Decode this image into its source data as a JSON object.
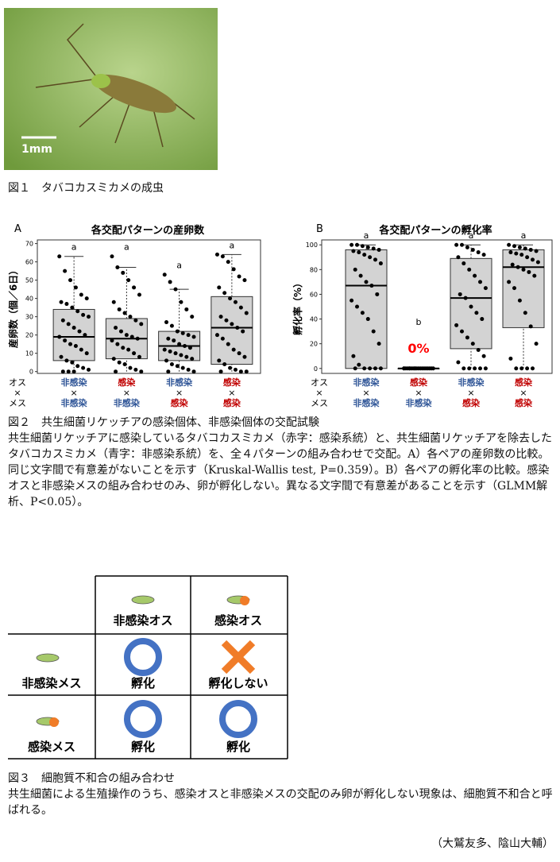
{
  "figure1": {
    "scale_bar": "1mm",
    "caption": "図１　タバコカスミカメの成虫"
  },
  "chart_data": [
    {
      "type": "box",
      "panel": "A",
      "title": "各交配パターンの産卵数",
      "ylabel": "産卵数（個／6日）",
      "ylim": [
        -1,
        72
      ],
      "yticks": [
        0,
        10,
        20,
        30,
        40,
        50,
        60,
        70
      ],
      "male_label": "オス",
      "female_label": "メス",
      "cross": "×",
      "male": [
        "非感染",
        "感染",
        "非感染",
        "感染"
      ],
      "female": [
        "非感染",
        "非感染",
        "感染",
        "感染"
      ],
      "male_colors": [
        "#2f5597",
        "#c00000",
        "#2f5597",
        "#c00000"
      ],
      "female_colors": [
        "#2f5597",
        "#2f5597",
        "#c00000",
        "#c00000"
      ],
      "letters": [
        "a",
        "a",
        "a",
        "a"
      ],
      "boxes": [
        {
          "min": 0,
          "q1": 6,
          "median": 19,
          "q3": 34,
          "max": 63
        },
        {
          "min": 0,
          "q1": 7,
          "median": 18,
          "q3": 29,
          "max": 57
        },
        {
          "min": 0,
          "q1": 6,
          "median": 14,
          "q3": 22,
          "max": 45
        },
        {
          "min": 0,
          "q1": 4,
          "median": 24,
          "q3": 41,
          "max": 64
        }
      ],
      "points": [
        [
          63,
          55,
          50,
          46,
          42,
          40,
          38,
          37,
          35,
          33,
          31,
          30,
          28,
          26,
          24,
          22,
          20,
          19,
          17,
          15,
          14,
          12,
          10,
          8,
          6,
          5,
          3,
          2,
          1,
          0,
          0,
          0
        ],
        [
          63,
          57,
          54,
          50,
          46,
          42,
          38,
          34,
          32,
          30,
          28,
          26,
          24,
          22,
          20,
          19,
          18,
          17,
          15,
          13,
          12,
          10,
          8,
          7,
          5,
          4,
          2,
          1,
          0,
          0
        ],
        [
          53,
          49,
          45,
          38,
          34,
          30,
          27,
          25,
          22,
          21,
          20,
          19,
          18,
          17,
          15,
          14,
          13,
          12,
          11,
          10,
          9,
          8,
          7,
          6,
          4,
          3,
          2,
          1,
          0,
          0
        ],
        [
          64,
          63,
          60,
          56,
          52,
          50,
          46,
          43,
          40,
          38,
          35,
          32,
          30,
          28,
          26,
          24,
          22,
          20,
          18,
          15,
          12,
          10,
          8,
          6,
          4,
          2,
          1,
          0,
          0,
          0
        ]
      ]
    },
    {
      "type": "box",
      "panel": "B",
      "title": "各交配パターンの孵化率",
      "ylabel": "孵化率（%）",
      "ylim": [
        -4,
        104
      ],
      "yticks": [
        0,
        20,
        40,
        60,
        80,
        100
      ],
      "male_label": "オス",
      "female_label": "メス",
      "cross": "×",
      "male": [
        "非感染",
        "感染",
        "非感染",
        "感染"
      ],
      "female": [
        "非感染",
        "非感染",
        "感染",
        "感染"
      ],
      "male_colors": [
        "#2f5597",
        "#c00000",
        "#2f5597",
        "#c00000"
      ],
      "female_colors": [
        "#2f5597",
        "#2f5597",
        "#c00000",
        "#c00000"
      ],
      "letters": [
        "a",
        "b",
        "a",
        "a"
      ],
      "annotation": "0%",
      "boxes": [
        {
          "min": 0,
          "q1": 0,
          "median": 67,
          "q3": 96,
          "max": 100
        },
        {
          "min": 0,
          "q1": 0,
          "median": 0,
          "q3": 0,
          "max": 0
        },
        {
          "min": 0,
          "q1": 16,
          "median": 57,
          "q3": 89,
          "max": 100
        },
        {
          "min": 0,
          "q1": 33,
          "median": 82,
          "q3": 96,
          "max": 100
        }
      ],
      "points": [
        [
          100,
          100,
          99,
          98,
          97,
          96,
          95,
          94,
          92,
          90,
          88,
          85,
          80,
          75,
          70,
          67,
          60,
          55,
          50,
          45,
          40,
          30,
          20,
          10,
          3,
          0,
          0,
          0,
          0,
          0
        ],
        [
          0,
          0,
          0,
          0,
          0,
          0,
          0,
          0,
          0,
          0,
          0,
          0,
          0,
          0,
          0,
          0,
          0,
          0,
          0,
          0
        ],
        [
          100,
          100,
          98,
          96,
          94,
          92,
          90,
          85,
          80,
          75,
          70,
          65,
          60,
          57,
          50,
          45,
          40,
          35,
          30,
          25,
          20,
          15,
          10,
          5,
          0,
          0,
          0,
          0,
          0
        ],
        [
          100,
          99,
          98,
          97,
          96,
          95,
          94,
          93,
          92,
          90,
          88,
          86,
          84,
          82,
          80,
          78,
          75,
          70,
          65,
          55,
          45,
          34,
          20,
          8,
          0,
          0,
          0,
          0
        ]
      ]
    }
  ],
  "figure2": {
    "caption_title": "図２　共生細菌リケッチアの感染個体、非感染個体の交配試験",
    "caption_body": "共生細菌リケッチアに感染しているタバコカスミカメ（赤字：感染系統）と、共生細菌リケッチアを除去したタバコカスミカメ（青字：非感染系統）を、全４パターンの組み合わせで交配。A）各ペアの産卵数の比較。同じ文字間で有意差がないことを示す（Kruskal-Wallis test, P=0.359）。B）各ペアの孵化率の比較。感染オスと非感染メスの組み合わせのみ、卵が孵化しない。異なる文字間で有意差があることを示す（GLMM解析、P<0.05）。"
  },
  "figure3": {
    "columns": [
      "非感染オス",
      "感染オス"
    ],
    "rows": [
      {
        "label": "非感染メス",
        "cells": [
          "孵化",
          "孵化しない"
        ]
      },
      {
        "label": "感染メス",
        "cells": [
          "孵化",
          "孵化"
        ]
      }
    ],
    "caption_title": "図３　細胞質不和合の組み合わせ",
    "caption_body": "共生細菌による生殖操作のうち、感染オスと非感染メスの交配のみ卵が孵化しない現象は、細胞質不和合と呼ばれる。"
  },
  "author": "（大鷲友多、陰山大輔）"
}
